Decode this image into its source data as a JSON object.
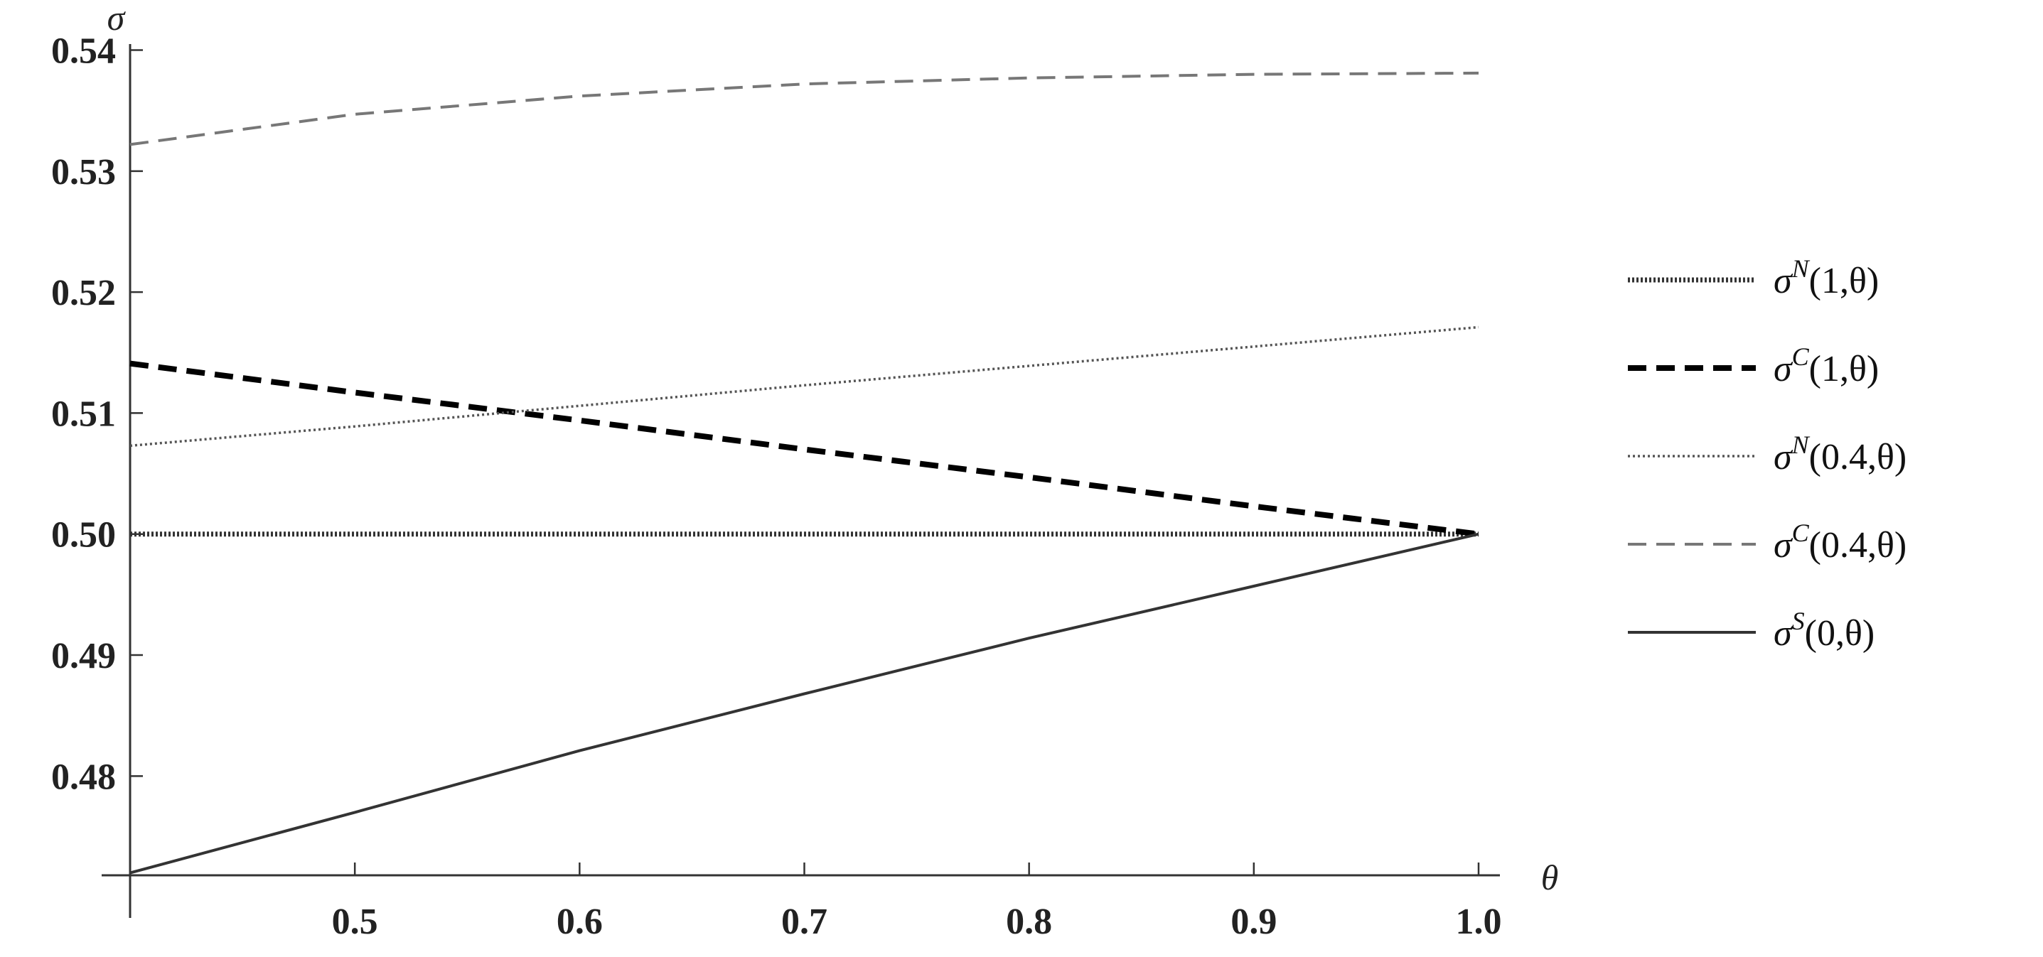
{
  "chart_data": {
    "type": "line",
    "xlabel": "θ",
    "ylabel": "σ",
    "xlim": [
      0.4,
      1.0
    ],
    "ylim": [
      0.4718,
      0.5405
    ],
    "xticks": [
      0.5,
      0.6,
      0.7,
      0.8,
      0.9,
      1.0
    ],
    "xtick_labels": [
      "0.5",
      "0.6",
      "0.7",
      "0.8",
      "0.9",
      "1.0"
    ],
    "yticks": [
      0.48,
      0.49,
      0.5,
      0.51,
      0.52,
      0.53,
      0.54
    ],
    "ytick_labels": [
      "0.48",
      "0.49",
      "0.50",
      "0.51",
      "0.52",
      "0.53",
      "0.54"
    ],
    "grid": false,
    "legend_position": "right",
    "series": [
      {
        "name": "σ^N(1,θ)",
        "label_base": "σ",
        "label_sup": "N",
        "label_args": "(1,θ)",
        "style": "dotted-thick",
        "color": "#333333",
        "x": [
          0.4,
          0.5,
          0.6,
          0.7,
          0.8,
          0.9,
          1.0
        ],
        "y": [
          0.5,
          0.5,
          0.5,
          0.5,
          0.5,
          0.5,
          0.5
        ]
      },
      {
        "name": "σ^C(1,θ)",
        "label_base": "σ",
        "label_sup": "C",
        "label_args": "(1,θ)",
        "style": "dashed-thick",
        "color": "#000000",
        "x": [
          0.4,
          0.5,
          0.6,
          0.7,
          0.8,
          0.9,
          1.0
        ],
        "y": [
          0.5141,
          0.5117,
          0.5094,
          0.507,
          0.5047,
          0.5023,
          0.5
        ]
      },
      {
        "name": "σ^N(0.4,θ)",
        "label_base": "σ",
        "label_sup": "N",
        "label_args": "(0.4,θ)",
        "style": "dotted-thin",
        "color": "#555555",
        "x": [
          0.4,
          0.5,
          0.6,
          0.7,
          0.8,
          0.9,
          1.0
        ],
        "y": [
          0.5073,
          0.5089,
          0.5106,
          0.5123,
          0.5139,
          0.5155,
          0.5171
        ]
      },
      {
        "name": "σ^C(0.4,θ)",
        "label_base": "σ",
        "label_sup": "C",
        "label_args": "(0.4,θ)",
        "style": "dashed-thin",
        "color": "#777777",
        "x": [
          0.4,
          0.5,
          0.6,
          0.7,
          0.8,
          0.9,
          1.0
        ],
        "y": [
          0.5322,
          0.5347,
          0.5362,
          0.5372,
          0.5377,
          0.538,
          0.5381
        ]
      },
      {
        "name": "σ^S(0,θ)",
        "label_base": "σ",
        "label_sup": "S",
        "label_args": "(0,θ)",
        "style": "solid",
        "color": "#333333",
        "x": [
          0.4,
          0.5,
          0.6,
          0.7,
          0.8,
          0.9,
          1.0
        ],
        "y": [
          0.472,
          0.477,
          0.4821,
          0.4868,
          0.4914,
          0.4957,
          0.5
        ]
      }
    ]
  }
}
